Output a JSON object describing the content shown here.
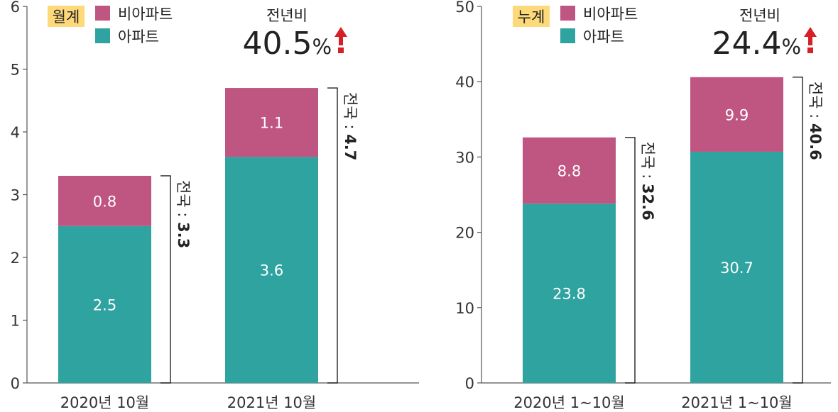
{
  "chart_data": [
    {
      "type": "bar",
      "stacked": true,
      "title": "",
      "tag": "월계",
      "categories": [
        "2020년 10월",
        "2021년 10월"
      ],
      "series": [
        {
          "name": "아파트",
          "values": [
            2.5,
            3.6
          ],
          "color": "#2ea3a0"
        },
        {
          "name": "비아파트",
          "values": [
            0.8,
            1.1
          ],
          "color": "#bf5681"
        }
      ],
      "totals": [
        3.3,
        4.7
      ],
      "total_prefix": "전국 : ",
      "yoy_label": "전년비",
      "yoy_value": "40.5",
      "yoy_unit": "%",
      "ylim": [
        0,
        6
      ],
      "yticks": [
        0,
        1,
        2,
        3,
        4,
        5,
        6
      ],
      "legend_position": "top-left",
      "grid": false
    },
    {
      "type": "bar",
      "stacked": true,
      "title": "",
      "tag": "누계",
      "categories": [
        "2020년 1~10월",
        "2021년 1~10월"
      ],
      "series": [
        {
          "name": "아파트",
          "values": [
            23.8,
            30.7
          ],
          "color": "#2ea3a0"
        },
        {
          "name": "비아파트",
          "values": [
            8.8,
            9.9
          ],
          "color": "#bf5681"
        }
      ],
      "totals": [
        32.6,
        40.6
      ],
      "total_prefix": "전국 : ",
      "yoy_label": "전년비",
      "yoy_value": "24.4",
      "yoy_unit": "%",
      "ylim": [
        0,
        50
      ],
      "yticks": [
        0,
        10,
        20,
        30,
        40,
        50
      ],
      "legend_position": "top-left",
      "grid": false
    }
  ],
  "colors": {
    "tag_bg": "#fdd97a",
    "arrow": "#d61f26",
    "axis": "#555555",
    "text": "#222222"
  }
}
